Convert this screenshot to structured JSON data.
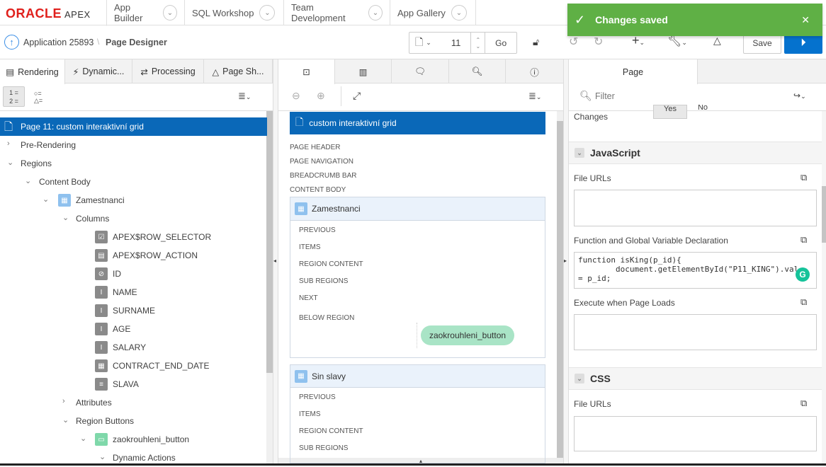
{
  "header": {
    "logo": "ORACLE",
    "logo_suffix": "APEX",
    "nav": [
      "App Builder",
      "SQL Workshop",
      "Team Development",
      "App Gallery"
    ]
  },
  "breadcrumb": {
    "app": "Application 25893",
    "page": "Page Designer"
  },
  "toolbar": {
    "page_number": "11",
    "go": "Go",
    "save": "Save"
  },
  "toast": {
    "message": "Changes saved",
    "color": "#5fb045"
  },
  "left": {
    "tabs": [
      "Rendering",
      "Dynamic...",
      "Processing",
      "Page Sh..."
    ],
    "tree": [
      {
        "label": "Page 11: custom interaktivní grid",
        "selected": true
      },
      {
        "label": "Pre-Rendering"
      },
      {
        "label": "Regions"
      },
      {
        "label": "Content Body"
      },
      {
        "label": "Zamestnanci"
      },
      {
        "label": "Columns"
      },
      {
        "label": "APEX$ROW_SELECTOR"
      },
      {
        "label": "APEX$ROW_ACTION"
      },
      {
        "label": "ID"
      },
      {
        "label": "NAME"
      },
      {
        "label": "SURNAME"
      },
      {
        "label": "AGE"
      },
      {
        "label": "SALARY"
      },
      {
        "label": "CONTRACT_END_DATE"
      },
      {
        "label": "SLAVA"
      },
      {
        "label": "Attributes"
      },
      {
        "label": "Region Buttons"
      },
      {
        "label": "zaokrouhleni_button"
      },
      {
        "label": "Dynamic Actions"
      }
    ]
  },
  "middle": {
    "page_title": "custom interaktivní grid",
    "page_slots": [
      "PAGE HEADER",
      "PAGE NAVIGATION",
      "BREADCRUMB BAR",
      "CONTENT BODY"
    ],
    "regions": [
      {
        "title": "Zamestnanci",
        "slots": [
          "PREVIOUS",
          "ITEMS",
          "REGION CONTENT",
          "SUB REGIONS",
          "NEXT",
          "BELOW REGION"
        ],
        "button": "zaokrouhleni_button"
      },
      {
        "title": "Sin slavy",
        "slots": [
          "PREVIOUS",
          "ITEMS",
          "REGION CONTENT",
          "SUB REGIONS"
        ]
      }
    ]
  },
  "right": {
    "tab": "Page",
    "filter_placeholder": "Filter",
    "changes_label": "Changes",
    "yes": "Yes",
    "no": "No",
    "js_section": "JavaScript",
    "file_urls": "File URLs",
    "func_label": "Function and Global Variable Declaration",
    "code": "function isKing(p_id){\n        document.getElementById(\"P11_KING\").val\n= p_id;",
    "exec_label": "Execute when Page Loads",
    "css_section": "CSS",
    "css_file_urls": "File URLs"
  }
}
